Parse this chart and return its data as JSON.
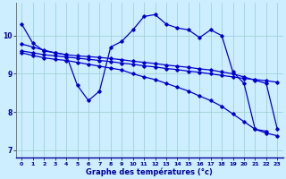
{
  "xlabel": "Graphe des températures (°c)",
  "background_color": "#cceeff",
  "line_color": "#0000cc",
  "grid_color": "#99cccc",
  "xlim": [
    -0.5,
    23.5
  ],
  "ylim": [
    6.8,
    10.85
  ],
  "yticks": [
    7,
    8,
    9,
    10
  ],
  "xticks": [
    0,
    1,
    2,
    3,
    4,
    5,
    6,
    7,
    8,
    9,
    10,
    11,
    12,
    13,
    14,
    15,
    16,
    17,
    18,
    19,
    20,
    21,
    22,
    23
  ],
  "series": [
    {
      "x": [
        0,
        1,
        2,
        3,
        4,
        5,
        6,
        7,
        8,
        9,
        10,
        11,
        12,
        13,
        14,
        15,
        16,
        17,
        18,
        19,
        20,
        21,
        22
      ],
      "y": [
        10.3,
        9.8,
        9.6,
        9.55,
        9.5,
        8.7,
        8.3,
        8.55,
        9.7,
        9.85,
        10.15,
        10.5,
        10.55,
        10.3,
        10.2,
        10.15,
        9.95,
        10.15,
        10.0,
        9.05,
        8.75,
        7.55,
        7.5
      ]
    },
    {
      "x": [
        0,
        1,
        2,
        3,
        4,
        5,
        6,
        7,
        8,
        9,
        10,
        11,
        12,
        13,
        14,
        15,
        16,
        17,
        18,
        19,
        20,
        21,
        22,
        23
      ],
      "y": [
        9.78,
        9.7,
        9.62,
        9.55,
        9.5,
        9.47,
        9.45,
        9.43,
        9.4,
        9.37,
        9.33,
        9.3,
        9.27,
        9.23,
        9.2,
        9.17,
        9.13,
        9.1,
        9.05,
        9.0,
        8.92,
        8.83,
        8.75,
        7.55
      ]
    },
    {
      "x": [
        0,
        1,
        2,
        3,
        4,
        5,
        6,
        7,
        8,
        9,
        10,
        11,
        12,
        13,
        14,
        15,
        16,
        17,
        18,
        19,
        20,
        21,
        22,
        23
      ],
      "y": [
        9.6,
        9.55,
        9.5,
        9.47,
        9.44,
        9.41,
        9.38,
        9.35,
        9.32,
        9.28,
        9.25,
        9.21,
        9.18,
        9.14,
        9.11,
        9.07,
        9.04,
        9.0,
        8.96,
        8.92,
        8.88,
        8.85,
        8.82,
        8.78
      ]
    },
    {
      "x": [
        0,
        1,
        2,
        3,
        4,
        5,
        6,
        7,
        8,
        9,
        10,
        11,
        12,
        13,
        14,
        15,
        16,
        17,
        18,
        19,
        20,
        21,
        22,
        23
      ],
      "y": [
        9.55,
        9.48,
        9.42,
        9.38,
        9.35,
        9.3,
        9.25,
        9.2,
        9.15,
        9.1,
        9.0,
        8.92,
        8.85,
        8.75,
        8.65,
        8.55,
        8.42,
        8.3,
        8.15,
        7.95,
        7.75,
        7.55,
        7.45,
        7.38
      ]
    }
  ]
}
